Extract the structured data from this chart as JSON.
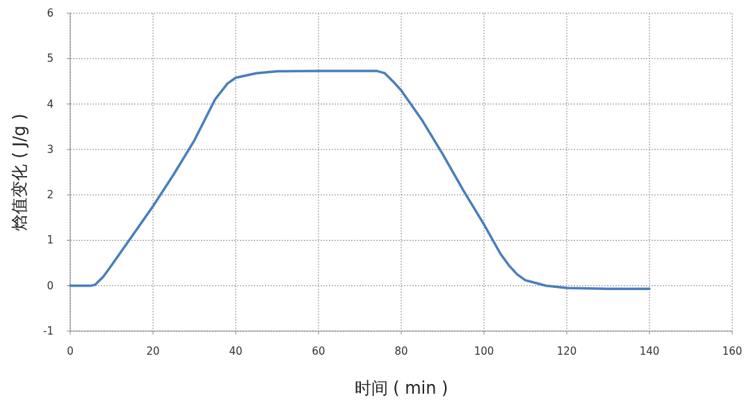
{
  "chart_data": {
    "type": "line",
    "xlabel": "时间 ( min )",
    "ylabel": "焓值变化 ( J/g )",
    "xlim": [
      0,
      160
    ],
    "ylim": [
      -1,
      6
    ],
    "xticks": [
      0,
      20,
      40,
      60,
      80,
      100,
      120,
      140,
      160
    ],
    "yticks": [
      -1,
      0,
      1,
      2,
      3,
      4,
      5,
      6
    ],
    "grid": true,
    "series": [
      {
        "color": "#4a7ebb",
        "x": [
          0,
          5,
          6,
          8,
          10,
          15,
          20,
          25,
          30,
          35,
          38,
          40,
          45,
          50,
          60,
          70,
          74,
          76,
          78,
          80,
          85,
          90,
          95,
          100,
          104,
          106,
          108,
          110,
          115,
          120,
          130,
          140
        ],
        "values": [
          0,
          0,
          0.02,
          0.2,
          0.45,
          1.1,
          1.75,
          2.45,
          3.2,
          4.1,
          4.45,
          4.58,
          4.68,
          4.72,
          4.73,
          4.73,
          4.73,
          4.68,
          4.5,
          4.3,
          3.65,
          2.9,
          2.1,
          1.35,
          0.7,
          0.45,
          0.25,
          0.12,
          0.0,
          -0.05,
          -0.07,
          -0.07
        ]
      }
    ]
  }
}
